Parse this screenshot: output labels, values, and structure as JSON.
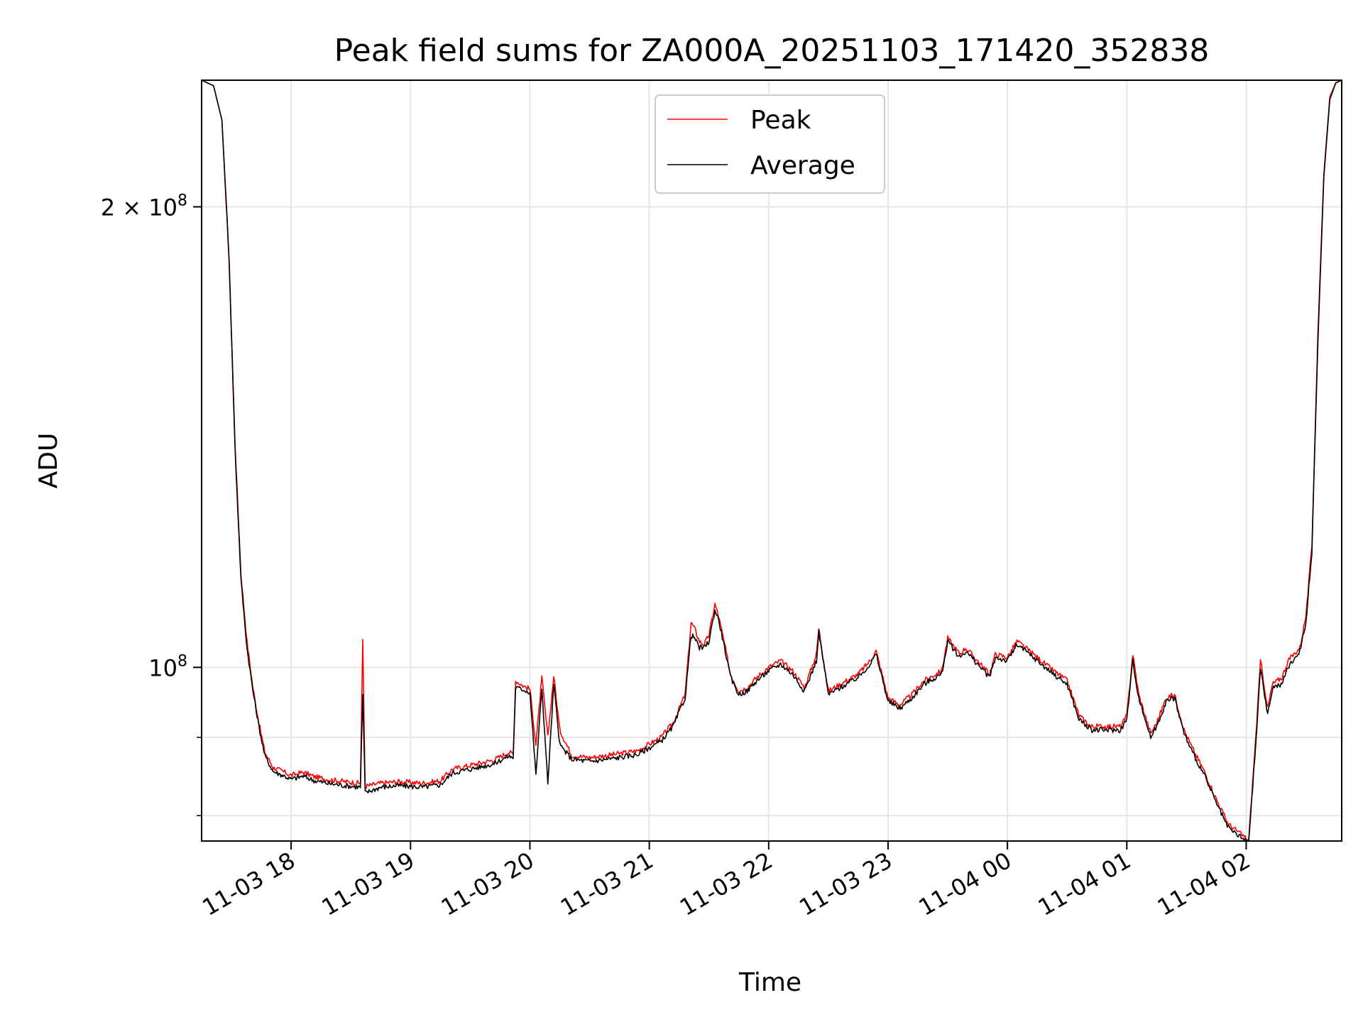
{
  "chart_data": {
    "type": "line",
    "title": "Peak field sums for ZA000A_20251103_171420_352838",
    "xlabel": "Time",
    "ylabel": "ADU",
    "yscale": "log",
    "grid": true,
    "legend_position": "top-center",
    "xlim_hours": [
      17.25,
      2.8
    ],
    "ylim": [
      77000000,
      242000000
    ],
    "x_ticks": [
      {
        "hour": 18,
        "label": "11-03 18"
      },
      {
        "hour": 19,
        "label": "11-03 19"
      },
      {
        "hour": 20,
        "label": "11-03 20"
      },
      {
        "hour": 21,
        "label": "11-03 21"
      },
      {
        "hour": 22,
        "label": "11-03 22"
      },
      {
        "hour": 23,
        "label": "11-03 23"
      },
      {
        "hour": 24,
        "label": "11-04 00"
      },
      {
        "hour": 25,
        "label": "11-04 01"
      },
      {
        "hour": 26,
        "label": "11-04 02"
      }
    ],
    "y_major_ticks": [
      {
        "value": 100000000,
        "mantissa": "",
        "exponent": "8",
        "base": "10"
      },
      {
        "value": 200000000,
        "mantissa": "2 × ",
        "exponent": "8",
        "base": "10"
      }
    ],
    "y_minor_ticks": [
      80000000,
      90000000
    ],
    "series": [
      {
        "name": "Peak",
        "color": "#ff0000",
        "hours": [
          17.25,
          17.35,
          17.42,
          17.48,
          17.53,
          17.58,
          17.63,
          17.68,
          17.73,
          17.78,
          17.85,
          17.93,
          18.0,
          18.1,
          18.2,
          18.3,
          18.45,
          18.58,
          18.6,
          18.62,
          18.75,
          18.9,
          19.1,
          19.25,
          19.35,
          19.5,
          19.7,
          19.82,
          19.86,
          19.88,
          19.95,
          20.0,
          20.05,
          20.1,
          20.15,
          20.2,
          20.25,
          20.35,
          20.5,
          20.7,
          20.9,
          21.1,
          21.2,
          21.3,
          21.35,
          21.38,
          21.42,
          21.46,
          21.5,
          21.55,
          21.58,
          21.62,
          21.68,
          21.75,
          21.82,
          21.9,
          22.0,
          22.1,
          22.2,
          22.3,
          22.4,
          22.42,
          22.5,
          22.6,
          22.65,
          22.75,
          22.85,
          22.9,
          23.0,
          23.1,
          23.2,
          23.3,
          23.45,
          23.5,
          23.6,
          23.65,
          23.75,
          23.85,
          23.9,
          24.0,
          24.08,
          24.15,
          24.25,
          24.35,
          24.5,
          24.6,
          24.7,
          24.8,
          24.95,
          25.0,
          25.05,
          25.1,
          25.2,
          25.25,
          25.33,
          25.4,
          25.48,
          25.55,
          25.65,
          25.75,
          25.85,
          26.0,
          26.02,
          26.08,
          26.12,
          26.18,
          26.22,
          26.3,
          26.35,
          26.45,
          26.5,
          26.55,
          26.6,
          26.65,
          26.7,
          26.75,
          26.8
        ],
        "values": [
          242000000,
          240000000,
          228000000,
          185000000,
          140000000,
          115000000,
          104000000,
          97000000,
          92000000,
          88000000,
          86000000,
          85500000,
          85000000,
          85400000,
          84800000,
          84500000,
          84200000,
          84000000,
          104000000,
          83600000,
          84000000,
          84200000,
          84000000,
          84300000,
          85800000,
          86300000,
          87000000,
          88000000,
          87800000,
          98000000,
          97200000,
          96800000,
          89000000,
          98500000,
          90000000,
          98800000,
          91000000,
          87600000,
          87300000,
          87700000,
          88200000,
          90000000,
          92000000,
          96000000,
          107000000,
          106000000,
          104000000,
          103500000,
          105000000,
          110000000,
          108000000,
          104500000,
          99000000,
          96500000,
          97000000,
          98500000,
          100000000,
          101000000,
          99500000,
          97000000,
          102000000,
          106000000,
          96500000,
          97500000,
          98000000,
          99000000,
          101000000,
          102500000,
          95500000,
          94500000,
          96000000,
          98000000,
          99500000,
          104500000,
          102000000,
          103000000,
          101000000,
          99000000,
          102000000,
          101500000,
          104000000,
          103000000,
          101500000,
          100000000,
          98000000,
          93000000,
          91500000,
          91500000,
          91500000,
          93000000,
          102000000,
          96000000,
          90500000,
          92000000,
          95500000,
          96000000,
          91000000,
          88500000,
          85500000,
          82000000,
          79000000,
          77300000,
          77000000,
          90000000,
          101000000,
          94000000,
          97500000,
          98500000,
          101000000,
          103000000,
          108000000,
          120000000,
          165000000,
          210000000,
          236000000,
          241000000,
          242000000
        ]
      },
      {
        "name": "Average",
        "color": "#000000",
        "hours": [
          17.25,
          17.35,
          17.42,
          17.48,
          17.53,
          17.58,
          17.63,
          17.68,
          17.73,
          17.78,
          17.85,
          17.93,
          18.0,
          18.1,
          18.2,
          18.3,
          18.45,
          18.58,
          18.6,
          18.62,
          18.75,
          18.9,
          19.1,
          19.25,
          19.35,
          19.5,
          19.7,
          19.82,
          19.86,
          19.88,
          19.95,
          20.0,
          20.05,
          20.1,
          20.15,
          20.2,
          20.25,
          20.35,
          20.5,
          20.7,
          20.9,
          21.1,
          21.2,
          21.3,
          21.35,
          21.38,
          21.42,
          21.46,
          21.5,
          21.55,
          21.58,
          21.62,
          21.68,
          21.75,
          21.82,
          21.9,
          22.0,
          22.1,
          22.2,
          22.3,
          22.4,
          22.42,
          22.5,
          22.6,
          22.65,
          22.75,
          22.85,
          22.9,
          23.0,
          23.1,
          23.2,
          23.3,
          23.45,
          23.5,
          23.6,
          23.65,
          23.75,
          23.85,
          23.9,
          24.0,
          24.08,
          24.15,
          24.25,
          24.35,
          24.5,
          24.6,
          24.7,
          24.8,
          24.95,
          25.0,
          25.05,
          25.1,
          25.2,
          25.25,
          25.33,
          25.4,
          25.48,
          25.55,
          25.65,
          25.75,
          25.85,
          26.0,
          26.02,
          26.08,
          26.12,
          26.18,
          26.22,
          26.3,
          26.35,
          26.45,
          26.5,
          26.55,
          26.6,
          26.65,
          26.7,
          26.75,
          26.8
        ],
        "values": [
          242000000,
          240000000,
          228000000,
          185000000,
          139000000,
          114000000,
          103000000,
          96500000,
          91500000,
          87500000,
          85500000,
          85000000,
          84500000,
          84900000,
          84300000,
          84000000,
          83700000,
          83500000,
          96000000,
          82800000,
          83500000,
          83700000,
          83500000,
          83800000,
          85300000,
          85800000,
          86500000,
          87500000,
          87300000,
          97000000,
          96700000,
          96300000,
          85000000,
          97000000,
          84000000,
          97500000,
          89000000,
          87100000,
          86800000,
          87200000,
          87700000,
          89500000,
          91500000,
          95500000,
          105000000,
          104500000,
          103000000,
          103000000,
          104000000,
          109000000,
          107500000,
          104000000,
          98500000,
          96000000,
          96500000,
          98000000,
          99500000,
          100500000,
          99000000,
          96500000,
          101000000,
          105500000,
          96000000,
          97000000,
          97500000,
          98500000,
          100500000,
          102000000,
          95000000,
          94000000,
          95500000,
          97500000,
          99000000,
          104000000,
          101500000,
          102500000,
          100500000,
          98500000,
          101500000,
          101000000,
          103500000,
          102500000,
          101000000,
          99500000,
          97500000,
          92500000,
          91000000,
          91000000,
          91000000,
          92500000,
          101000000,
          95500000,
          90000000,
          91500000,
          95000000,
          95500000,
          90500000,
          88000000,
          85000000,
          81500000,
          78500000,
          77000000,
          76800000,
          89000000,
          100000000,
          93000000,
          97000000,
          97500000,
          100000000,
          102500000,
          107000000,
          119000000,
          163000000,
          209000000,
          235000000,
          241000000,
          242000000
        ]
      }
    ]
  }
}
